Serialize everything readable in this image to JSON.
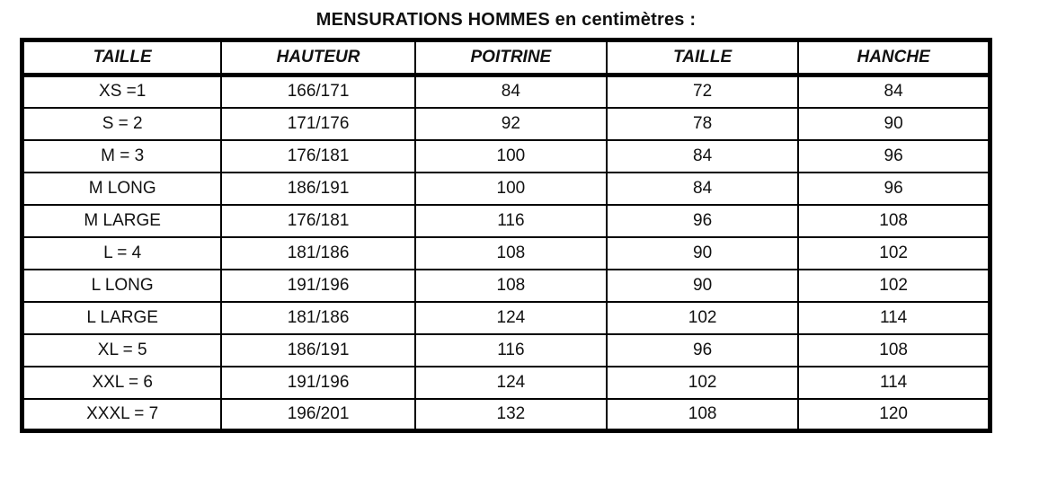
{
  "page": {
    "title": "MENSURATIONS HOMMES en centimètres :"
  },
  "colors": {
    "background": "#ffffff",
    "border": "#000000",
    "text": "#111111"
  },
  "table": {
    "headers": [
      "TAILLE",
      "HAUTEUR",
      "POITRINE",
      "TAILLE",
      "HANCHE"
    ],
    "rows": [
      {
        "cells": [
          "XS =1",
          "166/171",
          "84",
          "72",
          "84"
        ]
      },
      {
        "cells": [
          "S = 2",
          "171/176",
          "92",
          "78",
          "90"
        ]
      },
      {
        "cells": [
          "M = 3",
          "176/181",
          "100",
          "84",
          "96"
        ]
      },
      {
        "cells": [
          "M LONG",
          "186/191",
          "100",
          "84",
          "96"
        ]
      },
      {
        "cells": [
          "M LARGE",
          "176/181",
          "116",
          "96",
          "108"
        ]
      },
      {
        "cells": [
          "L = 4",
          "181/186",
          "108",
          "90",
          "102"
        ]
      },
      {
        "cells": [
          "L LONG",
          "191/196",
          "108",
          "90",
          "102"
        ]
      },
      {
        "cells": [
          "L LARGE",
          "181/186",
          "124",
          "102",
          "114"
        ]
      },
      {
        "cells": [
          "XL = 5",
          "186/191",
          "116",
          "96",
          "108"
        ]
      },
      {
        "cells": [
          "XXL = 6",
          "191/196",
          "124",
          "102",
          "114"
        ]
      },
      {
        "cells": [
          "XXXL = 7",
          "196/201",
          "132",
          "108",
          "120"
        ]
      }
    ]
  }
}
